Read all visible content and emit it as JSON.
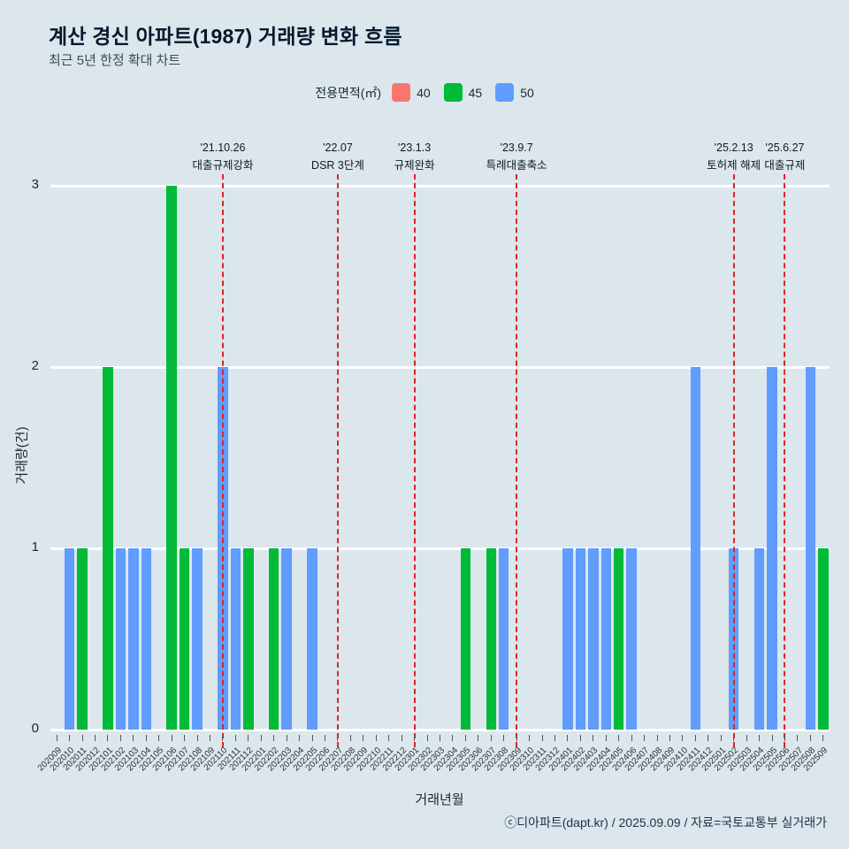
{
  "page": {
    "title": "계산 경신 아파트(1987) 거래량 변화 흐름",
    "subtitle": "최근 5년 한정 확대 차트",
    "footer": "ⓒ디아파트(dapt.kr) / 2025.09.09 / 자료=국토교통부 실거래가"
  },
  "legend": {
    "title": "전용면적(㎡)",
    "items": [
      {
        "label": "40",
        "color": "#F8766D"
      },
      {
        "label": "45",
        "color": "#00BA38"
      },
      {
        "label": "50",
        "color": "#619CFF"
      }
    ]
  },
  "chart_data": {
    "type": "bar",
    "title": "계산 경신 아파트(1987) 거래량 변화 흐름",
    "xlabel": "거래년월",
    "ylabel": "거래량(건)",
    "ylim": [
      0,
      3
    ],
    "yticks": [
      0,
      1,
      2,
      3
    ],
    "grid": "horizontal-white",
    "background": "#dbe7ec",
    "categories": [
      "202009",
      "202010",
      "202011",
      "202012",
      "202101",
      "202102",
      "202103",
      "202104",
      "202105",
      "202106",
      "202107",
      "202108",
      "202109",
      "202110",
      "202111",
      "202112",
      "202201",
      "202202",
      "202203",
      "202204",
      "202205",
      "202206",
      "202207",
      "202208",
      "202209",
      "202210",
      "202211",
      "202212",
      "202301",
      "202302",
      "202303",
      "202304",
      "202305",
      "202306",
      "202307",
      "202308",
      "202309",
      "202310",
      "202311",
      "202312",
      "202401",
      "202402",
      "202403",
      "202404",
      "202405",
      "202406",
      "202407",
      "202408",
      "202409",
      "202410",
      "202411",
      "202412",
      "202501",
      "202502",
      "202503",
      "202504",
      "202505",
      "202506",
      "202507",
      "202508",
      "202509"
    ],
    "series": [
      {
        "name": "40",
        "color": "#F8766D",
        "values": [
          0,
          0,
          0,
          0,
          0,
          0,
          0,
          0,
          0,
          0,
          0,
          0,
          0,
          0,
          0,
          0,
          0,
          0,
          0,
          0,
          0,
          0,
          0,
          0,
          0,
          0,
          0,
          0,
          0,
          0,
          0,
          0,
          0,
          0,
          0,
          0,
          0,
          0,
          0,
          0,
          0,
          0,
          0,
          0,
          0,
          0,
          0,
          0,
          0,
          0,
          0,
          0,
          0,
          0,
          0,
          0,
          0,
          0,
          0,
          0,
          0
        ]
      },
      {
        "name": "45",
        "color": "#00BA38",
        "values": [
          0,
          0,
          1,
          0,
          2,
          0,
          0,
          0,
          0,
          3,
          1,
          0,
          0,
          0,
          0,
          1,
          0,
          1,
          0,
          0,
          0,
          0,
          0,
          0,
          0,
          0,
          0,
          0,
          0,
          0,
          0,
          0,
          1,
          0,
          1,
          0,
          0,
          0,
          0,
          0,
          0,
          0,
          0,
          0,
          1,
          0,
          0,
          0,
          0,
          0,
          0,
          0,
          0,
          0,
          0,
          0,
          0,
          0,
          0,
          0,
          1
        ]
      },
      {
        "name": "50",
        "color": "#619CFF",
        "values": [
          0,
          1,
          0,
          0,
          0,
          1,
          1,
          1,
          0,
          0,
          0,
          1,
          0,
          2,
          1,
          0,
          0,
          0,
          1,
          0,
          1,
          0,
          0,
          0,
          0,
          0,
          0,
          0,
          0,
          0,
          0,
          0,
          0,
          0,
          0,
          1,
          0,
          0,
          0,
          0,
          1,
          1,
          1,
          1,
          0,
          1,
          0,
          0,
          0,
          0,
          2,
          0,
          0,
          1,
          0,
          1,
          2,
          0,
          0,
          2,
          0
        ]
      }
    ],
    "annotations": [
      {
        "month": "202110",
        "date": "'21.10.26",
        "label": "대출규제강화",
        "line_color": "#e02423"
      },
      {
        "month": "202207",
        "date": "'22.07",
        "label": "DSR 3단계",
        "line_color": "#e02423"
      },
      {
        "month": "202301",
        "date": "'23.1.3",
        "label": "규제완화",
        "line_color": "#e02423"
      },
      {
        "month": "202309",
        "date": "'23.9.7",
        "label": "특례대출축소",
        "line_color": "#e02423"
      },
      {
        "month": "202502",
        "date": "'25.2.13",
        "label": "토허제 해제",
        "line_color": "#e02423"
      },
      {
        "month": "202506",
        "date": "'25.6.27",
        "label": "대출규제",
        "line_color": "#e02423"
      }
    ]
  }
}
